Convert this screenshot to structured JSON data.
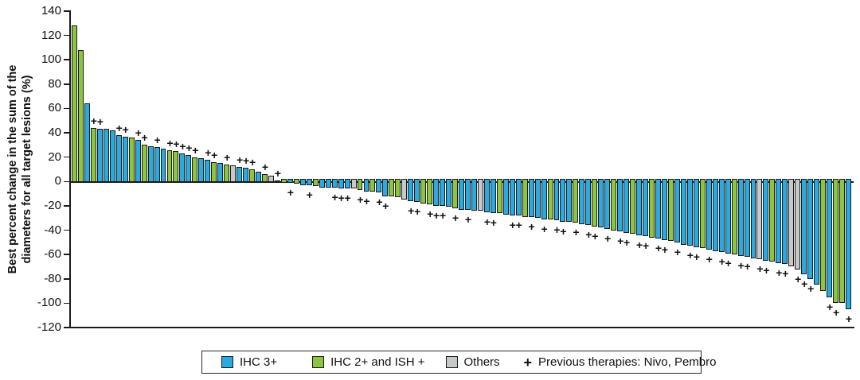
{
  "figure": {
    "background": "#ffffff"
  },
  "chart_data": {
    "type": "bar",
    "kind": "waterfall",
    "title": "",
    "xlabel": "",
    "ylabel_line1": "Best percent change in the sum of the",
    "ylabel_line2": "diameters for all target lesions (%)",
    "ylim": [
      -120,
      140
    ],
    "yticks": [
      140,
      120,
      100,
      80,
      60,
      40,
      20,
      0,
      -20,
      -40,
      -60,
      -80,
      -100,
      -120
    ],
    "grid": false,
    "legend_position": "bottom",
    "plus_glyph": "+",
    "colors": {
      "b": "#29ABE2",
      "g": "#8CC63F",
      "x": "#C7C8CA",
      "outline": "#1A1A1A"
    },
    "legend": [
      {
        "type": "swatch",
        "color_key": "b",
        "label": "IHC 3+"
      },
      {
        "type": "swatch",
        "color_key": "g",
        "label": "IHC 2+ and ISH +"
      },
      {
        "type": "swatch",
        "color_key": "x",
        "label": "Others"
      },
      {
        "type": "plus",
        "glyph": "+",
        "label": "Previous therapies: Nivo, Pembro"
      }
    ],
    "bars_format": [
      "percent_change",
      "color_key(b=IHC3+,g=IHC2+/ISH+,x=Others)",
      "previous_therapy_marker"
    ],
    "bars": [
      [
        128,
        "g",
        0
      ],
      [
        108,
        "g",
        0
      ],
      [
        64,
        "b",
        0
      ],
      [
        44,
        "g",
        1
      ],
      [
        43,
        "b",
        1
      ],
      [
        43,
        "b",
        0
      ],
      [
        42,
        "b",
        0
      ],
      [
        38,
        "b",
        1
      ],
      [
        37,
        "b",
        1
      ],
      [
        36,
        "g",
        0
      ],
      [
        34,
        "b",
        1
      ],
      [
        30,
        "g",
        1
      ],
      [
        29,
        "b",
        0
      ],
      [
        28,
        "b",
        1
      ],
      [
        27,
        "b",
        0
      ],
      [
        26,
        "g",
        1
      ],
      [
        25,
        "g",
        1
      ],
      [
        23,
        "b",
        1
      ],
      [
        22,
        "b",
        1
      ],
      [
        20,
        "g",
        1
      ],
      [
        19,
        "b",
        0
      ],
      [
        18,
        "b",
        1
      ],
      [
        16,
        "g",
        1
      ],
      [
        15,
        "b",
        0
      ],
      [
        14,
        "g",
        1
      ],
      [
        13,
        "x",
        0
      ],
      [
        12,
        "b",
        1
      ],
      [
        11,
        "b",
        1
      ],
      [
        10,
        "g",
        1
      ],
      [
        8,
        "b",
        0
      ],
      [
        6,
        "g",
        1
      ],
      [
        5,
        "x",
        0
      ],
      [
        1,
        "b",
        1
      ],
      [
        -1,
        "g",
        0
      ],
      [
        -1,
        "b",
        1
      ],
      [
        -2,
        "g",
        0
      ],
      [
        -3,
        "b",
        0
      ],
      [
        -3,
        "b",
        1
      ],
      [
        -4,
        "g",
        0
      ],
      [
        -5,
        "b",
        0
      ],
      [
        -5,
        "b",
        0
      ],
      [
        -5,
        "b",
        1
      ],
      [
        -6,
        "b",
        1
      ],
      [
        -6,
        "b",
        1
      ],
      [
        -6,
        "x",
        0
      ],
      [
        -7,
        "g",
        1
      ],
      [
        -8,
        "b",
        1
      ],
      [
        -8,
        "g",
        0
      ],
      [
        -9,
        "b",
        1
      ],
      [
        -12,
        "b",
        1
      ],
      [
        -12,
        "g",
        0
      ],
      [
        -13,
        "g",
        0
      ],
      [
        -15,
        "x",
        0
      ],
      [
        -16,
        "b",
        1
      ],
      [
        -17,
        "b",
        1
      ],
      [
        -18,
        "g",
        0
      ],
      [
        -19,
        "g",
        1
      ],
      [
        -20,
        "b",
        1
      ],
      [
        -20,
        "b",
        1
      ],
      [
        -21,
        "b",
        0
      ],
      [
        -22,
        "g",
        1
      ],
      [
        -23,
        "b",
        0
      ],
      [
        -23,
        "b",
        1
      ],
      [
        -24,
        "b",
        0
      ],
      [
        -24,
        "x",
        0
      ],
      [
        -25,
        "b",
        1
      ],
      [
        -26,
        "b",
        1
      ],
      [
        -26,
        "g",
        0
      ],
      [
        -27,
        "b",
        0
      ],
      [
        -28,
        "b",
        1
      ],
      [
        -28,
        "b",
        1
      ],
      [
        -29,
        "g",
        0
      ],
      [
        -29,
        "b",
        1
      ],
      [
        -30,
        "b",
        0
      ],
      [
        -31,
        "b",
        1
      ],
      [
        -31,
        "g",
        0
      ],
      [
        -32,
        "b",
        1
      ],
      [
        -33,
        "b",
        1
      ],
      [
        -33,
        "b",
        0
      ],
      [
        -34,
        "g",
        1
      ],
      [
        -35,
        "b",
        0
      ],
      [
        -36,
        "b",
        1
      ],
      [
        -37,
        "g",
        1
      ],
      [
        -38,
        "b",
        0
      ],
      [
        -39,
        "b",
        1
      ],
      [
        -40,
        "g",
        0
      ],
      [
        -41,
        "b",
        1
      ],
      [
        -42,
        "b",
        1
      ],
      [
        -43,
        "g",
        0
      ],
      [
        -44,
        "b",
        1
      ],
      [
        -45,
        "b",
        1
      ],
      [
        -46,
        "g",
        0
      ],
      [
        -47,
        "b",
        1
      ],
      [
        -48,
        "b",
        1
      ],
      [
        -49,
        "g",
        0
      ],
      [
        -50,
        "b",
        1
      ],
      [
        -52,
        "b",
        0
      ],
      [
        -53,
        "b",
        1
      ],
      [
        -54,
        "b",
        1
      ],
      [
        -55,
        "g",
        0
      ],
      [
        -56,
        "b",
        1
      ],
      [
        -57,
        "b",
        0
      ],
      [
        -58,
        "b",
        1
      ],
      [
        -59,
        "b",
        1
      ],
      [
        -60,
        "g",
        0
      ],
      [
        -61,
        "b",
        1
      ],
      [
        -62,
        "b",
        1
      ],
      [
        -63,
        "b",
        0
      ],
      [
        -64,
        "x",
        1
      ],
      [
        -65,
        "b",
        1
      ],
      [
        -66,
        "g",
        0
      ],
      [
        -67,
        "b",
        1
      ],
      [
        -68,
        "b",
        1
      ],
      [
        -70,
        "x",
        0
      ],
      [
        -72,
        "x",
        1
      ],
      [
        -76,
        "b",
        1
      ],
      [
        -80,
        "b",
        1
      ],
      [
        -85,
        "b",
        0
      ],
      [
        -90,
        "g",
        0
      ],
      [
        -95,
        "b",
        1
      ],
      [
        -100,
        "g",
        1
      ],
      [
        -100,
        "g",
        0
      ],
      [
        -105,
        "b",
        1
      ]
    ]
  }
}
